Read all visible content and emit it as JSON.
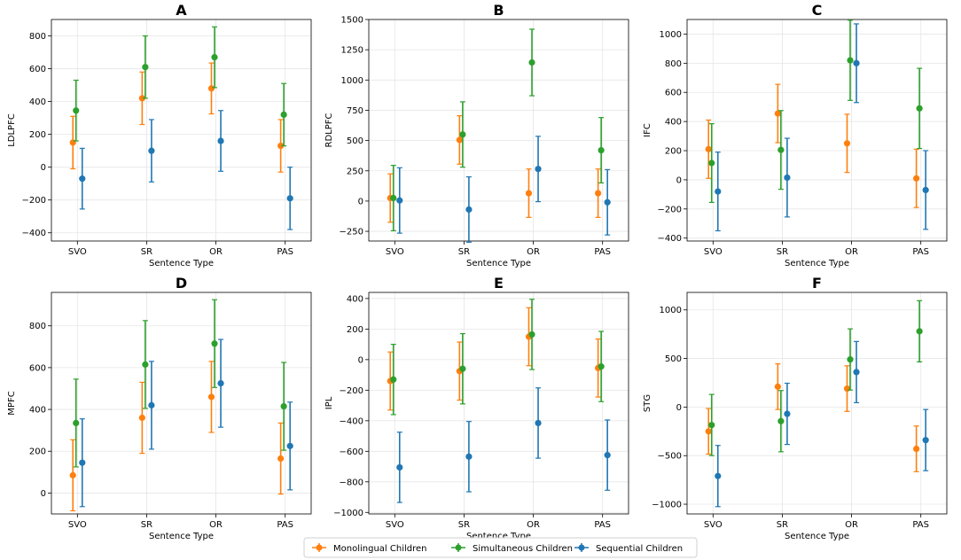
{
  "legend": {
    "items": [
      {
        "label": "Monolingual Children",
        "color": "#ff7f0e"
      },
      {
        "label": "Simultaneous Children",
        "color": "#2ca02c"
      },
      {
        "label": "Sequential Children",
        "color": "#1f77b4"
      }
    ],
    "placement": "bottom-center"
  },
  "chart_data": [
    {
      "type": "errorbar",
      "title": "A",
      "xlabel": "Sentence Type",
      "ylabel": "LDLPFC",
      "categories": [
        "SVO",
        "SR",
        "OR",
        "PAS"
      ],
      "ylim": [
        -450,
        900
      ],
      "yticks": [
        -400,
        -200,
        0,
        200,
        400,
        600,
        800
      ],
      "yticklabels": [
        "−400",
        "−200",
        "0",
        "200",
        "400",
        "600",
        "800"
      ],
      "series": [
        {
          "name": "Monolingual Children",
          "color": "#ff7f0e",
          "values": [
            150,
            420,
            480,
            130
          ],
          "errors": [
            160,
            160,
            155,
            160
          ]
        },
        {
          "name": "Simultaneous Children",
          "color": "#2ca02c",
          "values": [
            345,
            610,
            670,
            320
          ],
          "errors": [
            185,
            190,
            185,
            190
          ]
        },
        {
          "name": "Sequential Children",
          "color": "#1f77b4",
          "values": [
            -70,
            100,
            160,
            -190
          ],
          "errors": [
            185,
            190,
            185,
            190
          ]
        }
      ]
    },
    {
      "type": "errorbar",
      "title": "B",
      "xlabel": "Sentence Type",
      "ylabel": "RDLPFC",
      "categories": [
        "SVO",
        "SR",
        "OR",
        "PAS"
      ],
      "ylim": [
        -330,
        1500
      ],
      "yticks": [
        -250,
        0,
        250,
        500,
        750,
        1000,
        1250,
        1500
      ],
      "yticklabels": [
        "−250",
        "0",
        "250",
        "500",
        "750",
        "1000",
        "1250",
        "1500"
      ],
      "series": [
        {
          "name": "Monolingual Children",
          "color": "#ff7f0e",
          "values": [
            25,
            505,
            65,
            65
          ],
          "errors": [
            200,
            200,
            200,
            200
          ]
        },
        {
          "name": "Simultaneous Children",
          "color": "#2ca02c",
          "values": [
            25,
            550,
            1145,
            420
          ],
          "errors": [
            270,
            270,
            275,
            270
          ]
        },
        {
          "name": "Sequential Children",
          "color": "#1f77b4",
          "values": [
            5,
            -70,
            265,
            -10
          ],
          "errors": [
            270,
            270,
            270,
            270
          ]
        }
      ]
    },
    {
      "type": "errorbar",
      "title": "C",
      "xlabel": "Sentence Type",
      "ylabel": "IFC",
      "categories": [
        "SVO",
        "SR",
        "OR",
        "PAS"
      ],
      "ylim": [
        -420,
        1100
      ],
      "yticks": [
        -400,
        -200,
        0,
        200,
        400,
        600,
        800,
        1000
      ],
      "yticklabels": [
        "−400",
        "−200",
        "0",
        "200",
        "400",
        "600",
        "800",
        "1000"
      ],
      "series": [
        {
          "name": "Monolingual Children",
          "color": "#ff7f0e",
          "values": [
            210,
            455,
            250,
            10
          ],
          "errors": [
            200,
            200,
            200,
            200
          ]
        },
        {
          "name": "Simultaneous Children",
          "color": "#2ca02c",
          "values": [
            115,
            205,
            820,
            490
          ],
          "errors": [
            270,
            270,
            275,
            275
          ]
        },
        {
          "name": "Sequential Children",
          "color": "#1f77b4",
          "values": [
            -80,
            15,
            800,
            -70
          ],
          "errors": [
            270,
            270,
            270,
            270
          ]
        }
      ]
    },
    {
      "type": "errorbar",
      "title": "D",
      "xlabel": "Sentence Type",
      "ylabel": "MPFC",
      "categories": [
        "SVO",
        "SR",
        "OR",
        "PAS"
      ],
      "ylim": [
        -100,
        960
      ],
      "yticks": [
        0,
        200,
        400,
        600,
        800
      ],
      "yticklabels": [
        "0",
        "200",
        "400",
        "600",
        "800"
      ],
      "series": [
        {
          "name": "Monolingual Children",
          "color": "#ff7f0e",
          "values": [
            85,
            360,
            460,
            165
          ],
          "errors": [
            170,
            170,
            170,
            170
          ]
        },
        {
          "name": "Simultaneous Children",
          "color": "#2ca02c",
          "values": [
            335,
            615,
            715,
            415
          ],
          "errors": [
            210,
            210,
            210,
            210
          ]
        },
        {
          "name": "Sequential Children",
          "color": "#1f77b4",
          "values": [
            145,
            420,
            525,
            225
          ],
          "errors": [
            210,
            210,
            210,
            210
          ]
        }
      ]
    },
    {
      "type": "errorbar",
      "title": "E",
      "xlabel": "Sentence Type",
      "ylabel": "IPL",
      "categories": [
        "SVO",
        "SR",
        "OR",
        "PAS"
      ],
      "ylim": [
        -1010,
        440
      ],
      "yticks": [
        -1000,
        -800,
        -600,
        -400,
        -200,
        0,
        200,
        400
      ],
      "yticklabels": [
        "−1000",
        "−800",
        "−600",
        "−400",
        "−200",
        "0",
        "200",
        "400"
      ],
      "series": [
        {
          "name": "Monolingual Children",
          "color": "#ff7f0e",
          "values": [
            -140,
            -75,
            150,
            -55
          ],
          "errors": [
            190,
            190,
            190,
            190
          ]
        },
        {
          "name": "Simultaneous Children",
          "color": "#2ca02c",
          "values": [
            -130,
            -60,
            165,
            -45
          ],
          "errors": [
            230,
            230,
            230,
            230
          ]
        },
        {
          "name": "Sequential Children",
          "color": "#1f77b4",
          "values": [
            -705,
            -635,
            -415,
            -625
          ],
          "errors": [
            230,
            230,
            230,
            230
          ]
        }
      ]
    },
    {
      "type": "errorbar",
      "title": "F",
      "xlabel": "Sentence Type",
      "ylabel": "STG",
      "categories": [
        "SVO",
        "SR",
        "OR",
        "PAS"
      ],
      "ylim": [
        -1100,
        1180
      ],
      "yticks": [
        -1000,
        -500,
        0,
        500,
        1000
      ],
      "yticklabels": [
        "−1000",
        "−500",
        "0",
        "500",
        "1000"
      ],
      "series": [
        {
          "name": "Monolingual Children",
          "color": "#ff7f0e",
          "values": [
            -250,
            210,
            190,
            -430
          ],
          "errors": [
            235,
            235,
            235,
            235
          ]
        },
        {
          "name": "Simultaneous Children",
          "color": "#2ca02c",
          "values": [
            -185,
            -145,
            490,
            780
          ],
          "errors": [
            315,
            315,
            315,
            315
          ]
        },
        {
          "name": "Sequential Children",
          "color": "#1f77b4",
          "values": [
            -710,
            -70,
            360,
            -340
          ],
          "errors": [
            315,
            315,
            315,
            315
          ]
        }
      ]
    }
  ]
}
